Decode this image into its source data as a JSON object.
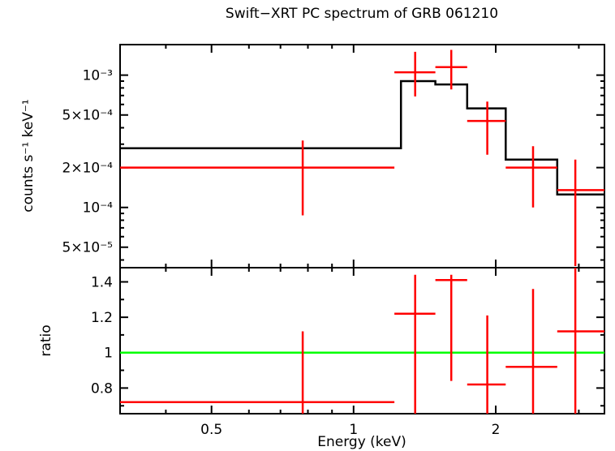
{
  "title": "Swift−XRT PC spectrum of GRB 061210",
  "colors": {
    "data": "#ff0000",
    "model": "#000000",
    "reference": "#00ff00",
    "axis": "#000000",
    "background": "#ffffff"
  },
  "axes": {
    "x": {
      "label": "Energy (keV)",
      "scale": "log",
      "range": [
        0.32,
        3.4
      ],
      "major_ticks": [
        0.5,
        1,
        2
      ],
      "major_tick_labels": [
        "0.5",
        "1",
        "2"
      ],
      "minor_ticks": [
        0.4,
        0.6,
        0.7,
        0.8,
        0.9,
        3
      ]
    },
    "y_top": {
      "label": "counts s⁻¹ keV⁻¹",
      "scale": "log",
      "range": [
        3.5e-05,
        0.0017
      ],
      "major_ticks": [
        0.001,
        0.0005,
        0.0002,
        0.0001,
        5e-05
      ],
      "major_tick_labels": [
        "10⁻³",
        "5×10⁻⁴",
        "2×10⁻⁴",
        "10⁻⁴",
        "5×10⁻⁵"
      ],
      "minor_ticks": [
        4e-05,
        6e-05,
        7e-05,
        8e-05,
        9e-05,
        0.0003,
        0.0004,
        0.0006,
        0.0007,
        0.0008,
        0.0009
      ]
    },
    "y_bottom": {
      "label": "ratio",
      "scale": "linear",
      "range": [
        0.655,
        1.48
      ],
      "major_ticks": [
        0.8,
        1,
        1.2,
        1.4
      ],
      "major_tick_labels": [
        "0.8",
        "1",
        "1.2",
        "1.4"
      ],
      "minor_ticks": [
        0.7,
        0.9,
        1.1,
        1.3
      ]
    }
  },
  "chart_data": [
    {
      "name": "spectrum",
      "type": "scatter",
      "title": "Swift−XRT PC spectrum of GRB 061210",
      "xlabel": "Energy (keV)",
      "ylabel": "counts s⁻¹ keV⁻¹",
      "xscale": "log",
      "yscale": "log",
      "xlim": [
        0.32,
        3.4
      ],
      "ylim": [
        3.5e-05,
        0.0017
      ],
      "legend": null,
      "grid": false,
      "points": [
        {
          "x": 0.78,
          "x_lo": 0.32,
          "x_hi": 1.22,
          "y": 0.0002,
          "y_lo": 8.7e-05,
          "y_hi": 0.00032
        },
        {
          "x": 1.35,
          "x_lo": 1.22,
          "x_hi": 1.49,
          "y": 0.00105,
          "y_lo": 0.00069,
          "y_hi": 0.0015
        },
        {
          "x": 1.61,
          "x_lo": 1.49,
          "x_hi": 1.74,
          "y": 0.00115,
          "y_lo": 0.00078,
          "y_hi": 0.00155
        },
        {
          "x": 1.92,
          "x_lo": 1.74,
          "x_hi": 2.1,
          "y": 0.00045,
          "y_lo": 0.00025,
          "y_hi": 0.00063
        },
        {
          "x": 2.4,
          "x_lo": 2.1,
          "x_hi": 2.7,
          "y": 0.0002,
          "y_lo": 0.0001,
          "y_hi": 0.00029
        },
        {
          "x": 2.95,
          "x_lo": 2.7,
          "x_hi": 3.4,
          "y": 0.000135,
          "y_lo": 3.6e-05,
          "y_hi": 0.00023
        }
      ],
      "model_steps": [
        {
          "x_lo": 0.32,
          "x_hi": 1.26,
          "y": 0.00028
        },
        {
          "x_lo": 1.26,
          "x_hi": 1.49,
          "y": 0.0009
        },
        {
          "x_lo": 1.49,
          "x_hi": 1.74,
          "y": 0.00085
        },
        {
          "x_lo": 1.74,
          "x_hi": 2.1,
          "y": 0.00056
        },
        {
          "x_lo": 2.1,
          "x_hi": 2.7,
          "y": 0.00023
        },
        {
          "x_lo": 2.7,
          "x_hi": 3.4,
          "y": 0.000125
        }
      ]
    },
    {
      "name": "ratio",
      "type": "scatter",
      "xlabel": "Energy (keV)",
      "ylabel": "ratio",
      "xscale": "log",
      "yscale": "linear",
      "xlim": [
        0.32,
        3.4
      ],
      "ylim": [
        0.655,
        1.48
      ],
      "reference_line": 1,
      "grid": false,
      "points": [
        {
          "x": 0.78,
          "x_lo": 0.32,
          "x_hi": 1.22,
          "y": 0.72,
          "y_lo": 0.655,
          "y_hi": 1.12
        },
        {
          "x": 1.35,
          "x_lo": 1.22,
          "x_hi": 1.49,
          "y": 1.22,
          "y_lo": 0.655,
          "y_hi": 1.44
        },
        {
          "x": 1.61,
          "x_lo": 1.49,
          "x_hi": 1.74,
          "y": 1.41,
          "y_lo": 0.84,
          "y_hi": 1.44
        },
        {
          "x": 1.92,
          "x_lo": 1.74,
          "x_hi": 2.1,
          "y": 0.82,
          "y_lo": 0.655,
          "y_hi": 1.21
        },
        {
          "x": 2.4,
          "x_lo": 2.1,
          "x_hi": 2.7,
          "y": 0.92,
          "y_lo": 0.655,
          "y_hi": 1.36
        },
        {
          "x": 2.95,
          "x_lo": 2.7,
          "x_hi": 3.4,
          "y": 1.12,
          "y_lo": 0.655,
          "y_hi": 1.48
        }
      ]
    }
  ]
}
